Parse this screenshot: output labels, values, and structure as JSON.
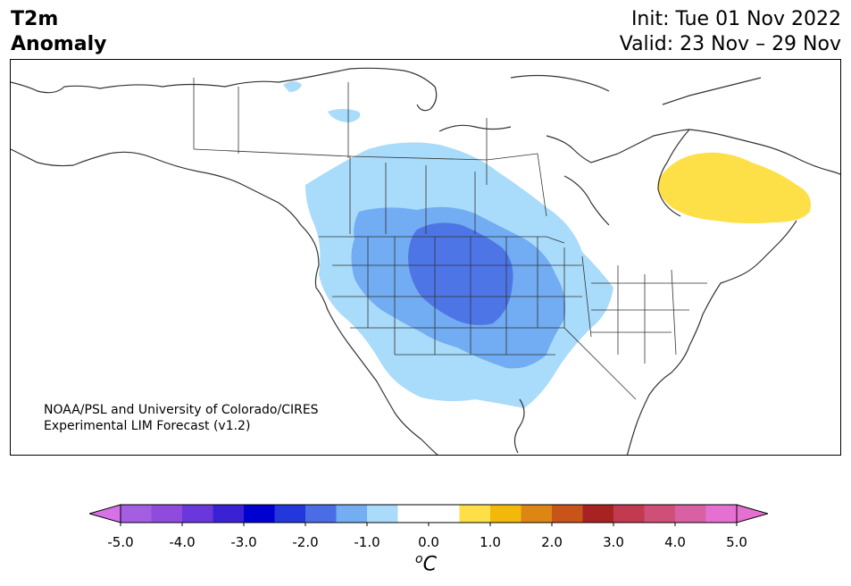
{
  "title": {
    "left_line1": "T2m",
    "left_line2": "Anomaly",
    "right_line1": "Init: Tue 01 Nov 2022",
    "right_line2": "Valid: 23 Nov – 29 Nov"
  },
  "credit": {
    "line1": "NOAA/PSL and University of Colorado/CIRES",
    "line2": "Experimental LIM Forecast (v1.2)"
  },
  "map": {
    "region": "North America",
    "projection": "conic",
    "anomaly_features": [
      {
        "name": "western-us-cold-anomaly",
        "level_c": -1.0,
        "color": "#a9dbfa"
      },
      {
        "name": "central-us-cold-anomaly",
        "level_c": -1.5,
        "color": "#72acf2"
      },
      {
        "name": "northern-plains-cold-core",
        "level_c": -2.0,
        "color": "#4d75e6"
      },
      {
        "name": "quebec-warm-anomaly",
        "level_c": 1.0,
        "color": "#fde048"
      }
    ]
  },
  "colorbar": {
    "unit_base": "C",
    "unit_sup": "o",
    "ticks": [
      "-5.0",
      "-4.0",
      "-3.0",
      "-2.0",
      "-1.0",
      "0.0",
      "1.0",
      "2.0",
      "3.0",
      "4.0",
      "5.0"
    ],
    "bins": [
      {
        "from": -5.0,
        "to": -4.5,
        "color": "#a45ee2"
      },
      {
        "from": -4.5,
        "to": -4.0,
        "color": "#8f4bde"
      },
      {
        "from": -4.0,
        "to": -3.5,
        "color": "#6a37dc"
      },
      {
        "from": -3.5,
        "to": -3.0,
        "color": "#3a22d4"
      },
      {
        "from": -3.0,
        "to": -2.5,
        "color": "#0000d1"
      },
      {
        "from": -2.5,
        "to": -2.0,
        "color": "#2337dc"
      },
      {
        "from": -2.0,
        "to": -1.5,
        "color": "#4a6de5"
      },
      {
        "from": -1.5,
        "to": -1.0,
        "color": "#74aef2"
      },
      {
        "from": -1.0,
        "to": -0.5,
        "color": "#aadbfa"
      },
      {
        "from": -0.5,
        "to": 0.0,
        "color": "#ffffff"
      },
      {
        "from": 0.0,
        "to": 0.5,
        "color": "#ffffff"
      },
      {
        "from": 0.5,
        "to": 1.0,
        "color": "#fde048"
      },
      {
        "from": 1.0,
        "to": 1.5,
        "color": "#f3b90a"
      },
      {
        "from": 1.5,
        "to": 2.0,
        "color": "#de8614"
      },
      {
        "from": 2.0,
        "to": 2.5,
        "color": "#c85419"
      },
      {
        "from": 2.5,
        "to": 3.0,
        "color": "#a92222"
      },
      {
        "from": 3.0,
        "to": 3.5,
        "color": "#c23a4f"
      },
      {
        "from": 3.5,
        "to": 4.0,
        "color": "#d04f79"
      },
      {
        "from": 4.0,
        "to": 4.5,
        "color": "#d960a2"
      },
      {
        "from": 4.5,
        "to": 5.0,
        "color": "#e670d2"
      }
    ],
    "extend_low_color": "#d671e8",
    "extend_high_color": "#e670d2"
  }
}
